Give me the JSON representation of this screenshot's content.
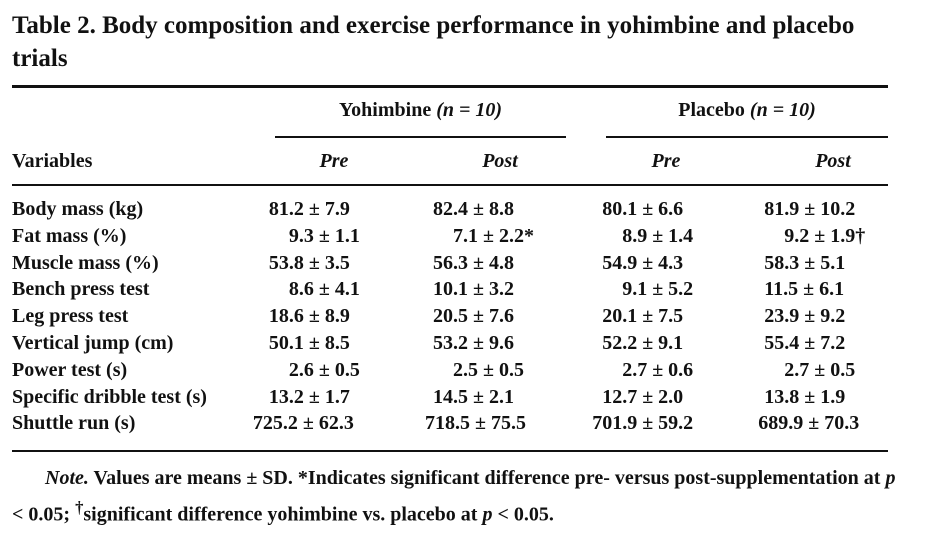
{
  "title": "Table 2. Body composition and exercise performance in yohimbine and placebo trials",
  "groups": {
    "yohimbine": {
      "name": "Yohimbine",
      "n_label": "(n = 10)"
    },
    "placebo": {
      "name": "Placebo",
      "n_label": "(n = 10)"
    }
  },
  "headers": {
    "variables": "Variables",
    "pre1": "Pre",
    "post1": "Post",
    "pre2": "Pre",
    "post2": "Post"
  },
  "rows": [
    {
      "variable": "Body mass (kg)",
      "y_pre": "81.2 ± 7.9",
      "y_post": "82.4 ± 8.8",
      "p_pre": "80.1 ± 6.6",
      "p_post": "81.9 ± 10.2"
    },
    {
      "variable": "Fat mass (%)",
      "y_pre": "9.3 ± 1.1",
      "y_post": "7.1 ± 2.2*",
      "p_pre": "8.9 ± 1.4",
      "p_post": "9.2 ± 1.9†"
    },
    {
      "variable": "Muscle mass (%)",
      "y_pre": "53.8 ± 3.5",
      "y_post": "56.3 ± 4.8",
      "p_pre": "54.9 ± 4.3",
      "p_post": "58.3 ± 5.1"
    },
    {
      "variable": "Bench press test",
      "y_pre": "8.6 ± 4.1",
      "y_post": "10.1 ± 3.2",
      "p_pre": "9.1 ± 5.2",
      "p_post": "11.5 ± 6.1"
    },
    {
      "variable": "Leg press test",
      "y_pre": "18.6 ± 8.9",
      "y_post": "20.5 ± 7.6",
      "p_pre": "20.1 ± 7.5",
      "p_post": "23.9 ± 9.2"
    },
    {
      "variable": "Vertical jump (cm)",
      "y_pre": "50.1 ± 8.5",
      "y_post": "53.2 ± 9.6",
      "p_pre": "52.2 ± 9.1",
      "p_post": "55.4 ± 7.2"
    },
    {
      "variable": "Power test (s)",
      "y_pre": "2.6 ± 0.5",
      "y_post": "2.5 ± 0.5",
      "p_pre": "2.7 ± 0.6",
      "p_post": "2.7 ± 0.5"
    },
    {
      "variable": "Specific dribble test (s)",
      "y_pre": "13.2 ± 1.7",
      "y_post": "14.5 ± 2.1",
      "p_pre": "12.7 ± 2.0",
      "p_post": "13.8 ± 1.9"
    },
    {
      "variable": "Shuttle run (s)",
      "y_pre": "725.2 ± 62.3",
      "y_post": "718.5 ± 75.5",
      "p_pre": "701.9 ± 59.2",
      "p_post": "689.9 ± 70.3"
    }
  ],
  "note": {
    "label": "Note.",
    "text_before_p1": " Values are means ± SD. *Indicates significant difference pre- versus post-supplementation at ",
    "p_symbol": "p",
    "text_mid": " < 0.05; ",
    "dagger": "†",
    "text_after_dagger": "significant difference yohimbine vs. placebo at ",
    "text_end": " < 0.05."
  }
}
